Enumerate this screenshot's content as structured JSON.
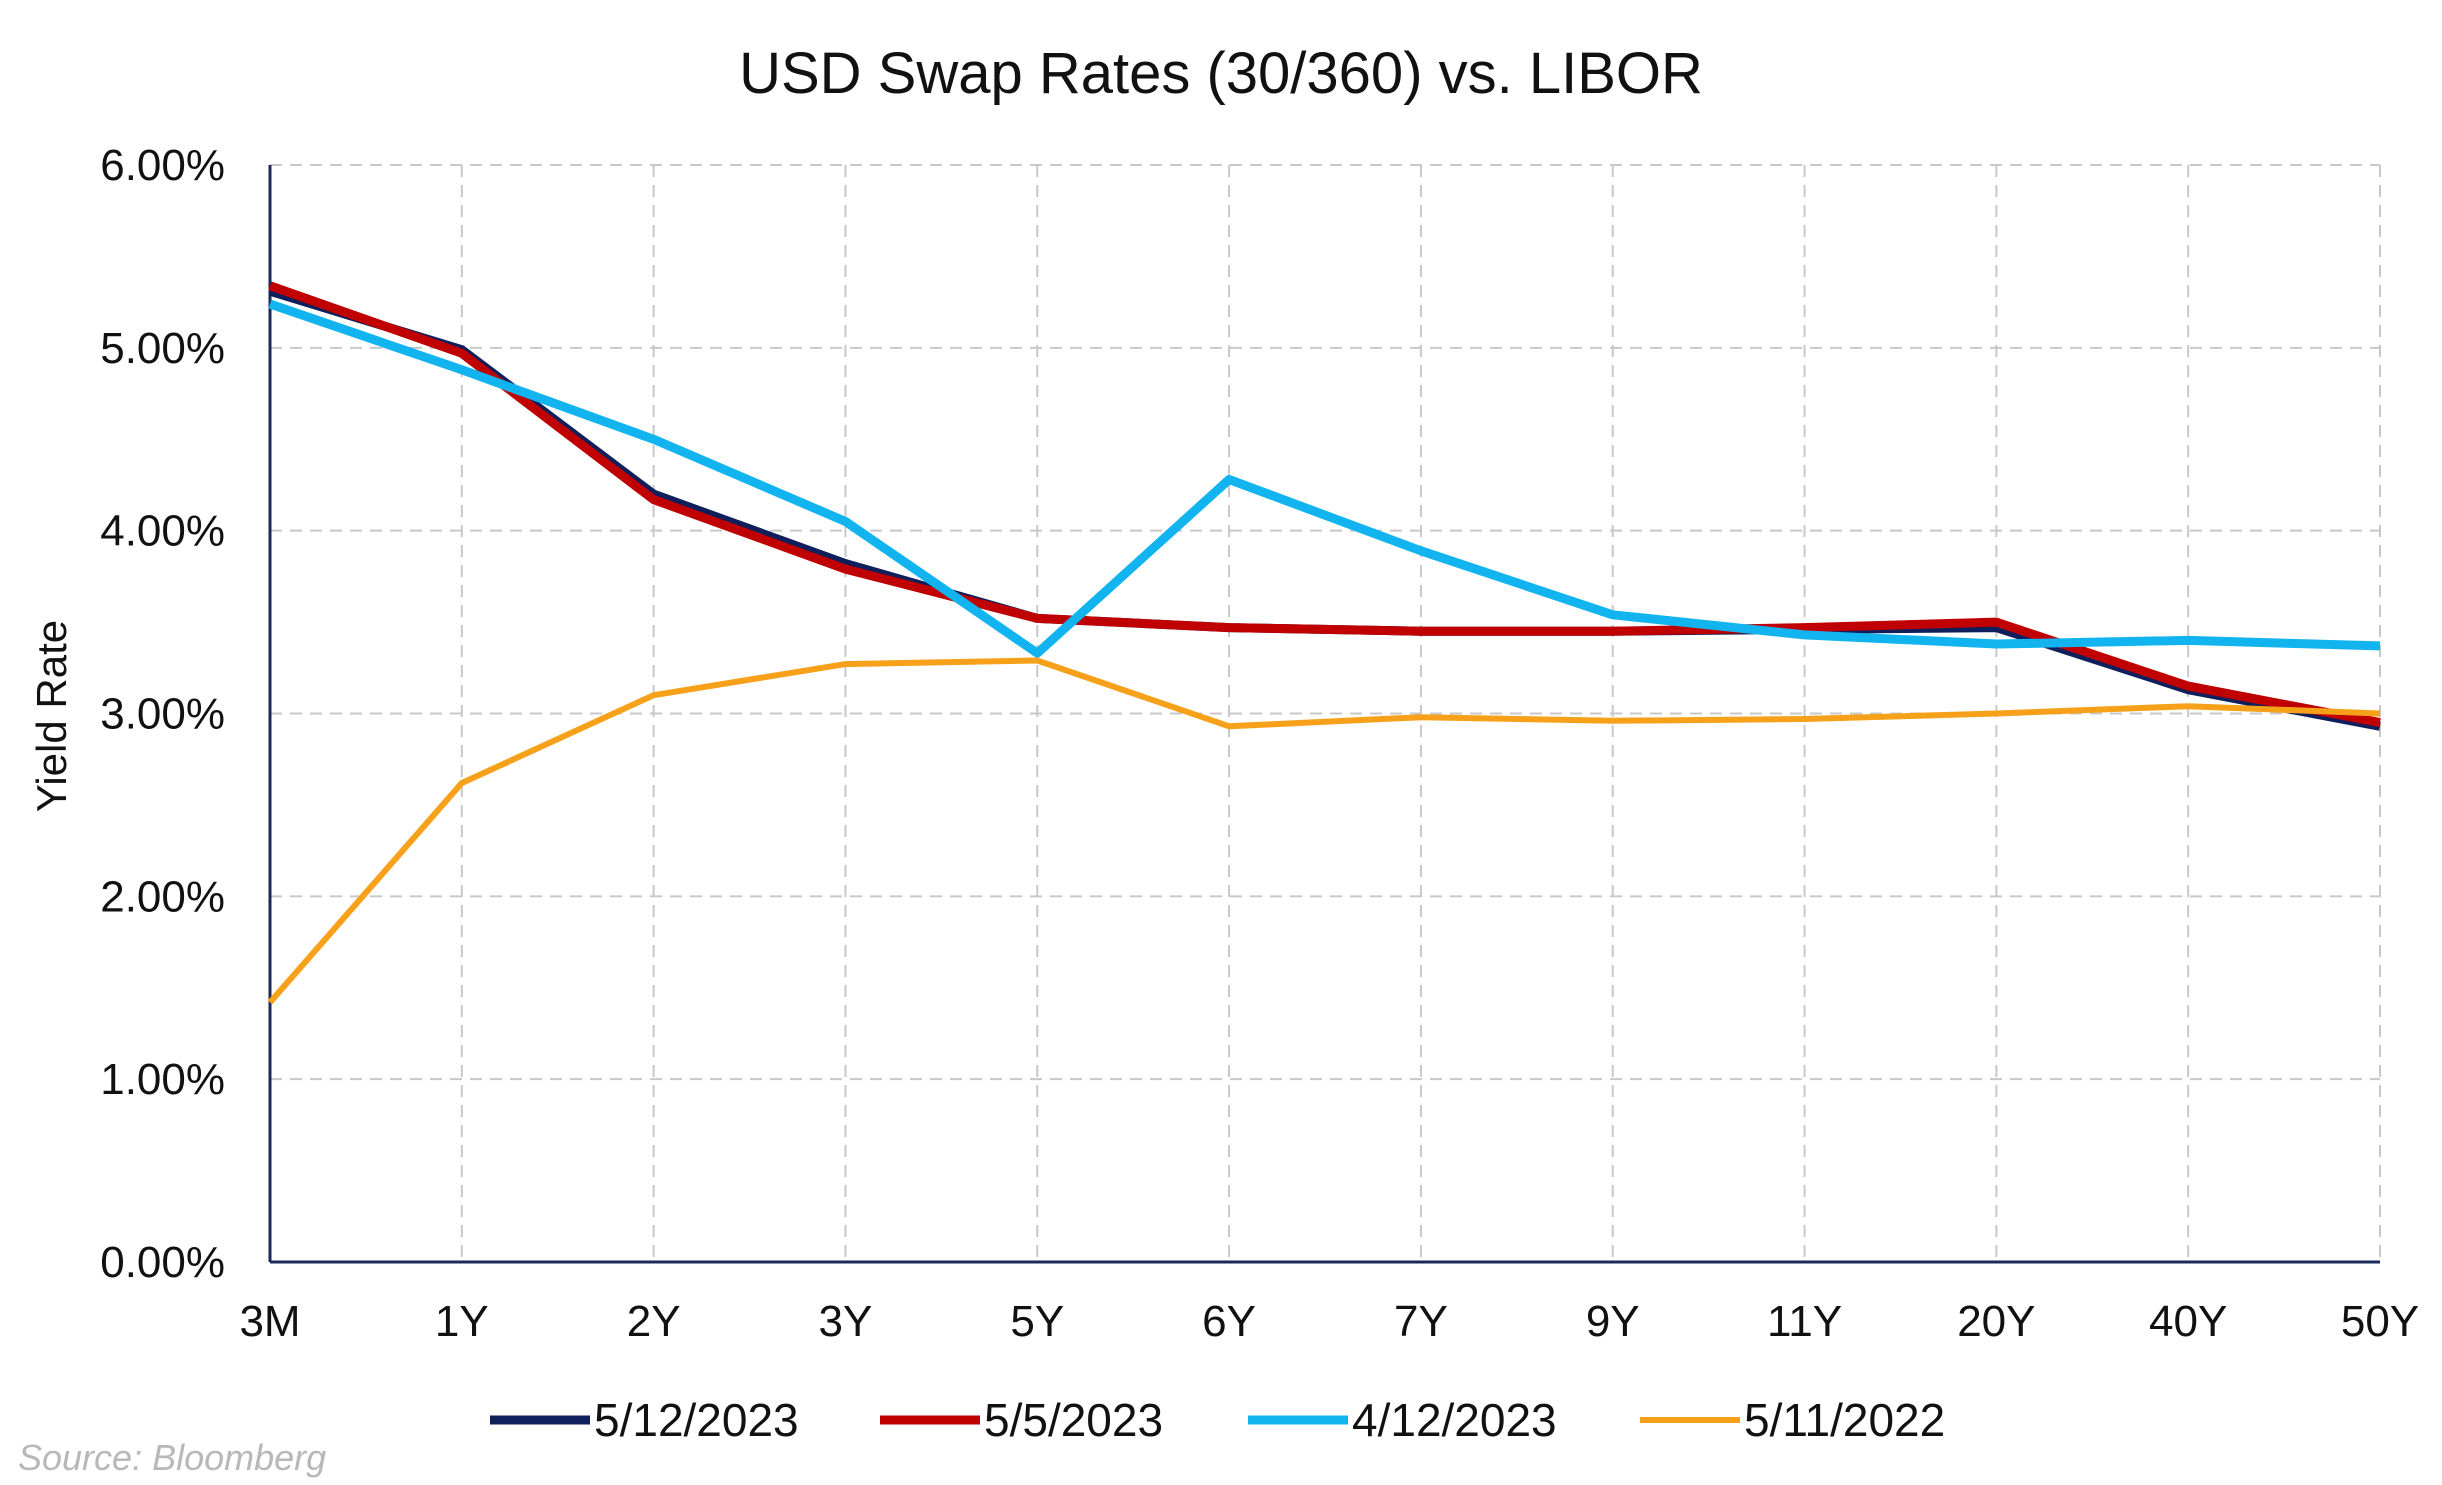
{
  "chart_data": {
    "type": "line",
    "title": "USD Swap Rates (30/360) vs. LIBOR",
    "xlabel": "",
    "ylabel": "Yield Rate",
    "categories": [
      "3M",
      "1Y",
      "2Y",
      "3Y",
      "5Y",
      "6Y",
      "7Y",
      "9Y",
      "11Y",
      "20Y",
      "40Y",
      "50Y"
    ],
    "ylim": [
      0,
      6
    ],
    "yticks": [
      "0.00%",
      "1.00%",
      "2.00%",
      "3.00%",
      "4.00%",
      "5.00%",
      "6.00%"
    ],
    "grid": true,
    "legend_position": "bottom",
    "series": [
      {
        "name": "5/12/2023",
        "color": "#0f1f5c",
        "values": [
          5.31,
          4.99,
          4.2,
          3.82,
          3.52,
          3.47,
          3.45,
          3.45,
          3.46,
          3.47,
          3.13,
          2.93
        ]
      },
      {
        "name": "5/5/2023",
        "color": "#c00000",
        "values": [
          5.34,
          4.97,
          4.17,
          3.79,
          3.52,
          3.47,
          3.45,
          3.45,
          3.47,
          3.5,
          3.15,
          2.95
        ]
      },
      {
        "name": "4/12/2023",
        "color": "#11b4ee",
        "values": [
          5.24,
          4.88,
          4.5,
          4.05,
          3.33,
          4.28,
          3.89,
          3.54,
          3.43,
          3.38,
          3.4,
          3.37
        ]
      },
      {
        "name": "5/11/2022",
        "color": "#f7a11a",
        "values": [
          1.42,
          2.62,
          3.1,
          3.27,
          3.29,
          2.93,
          2.98,
          2.96,
          2.97,
          3.0,
          3.04,
          3.0
        ]
      }
    ]
  },
  "source": "Source: Bloomberg"
}
